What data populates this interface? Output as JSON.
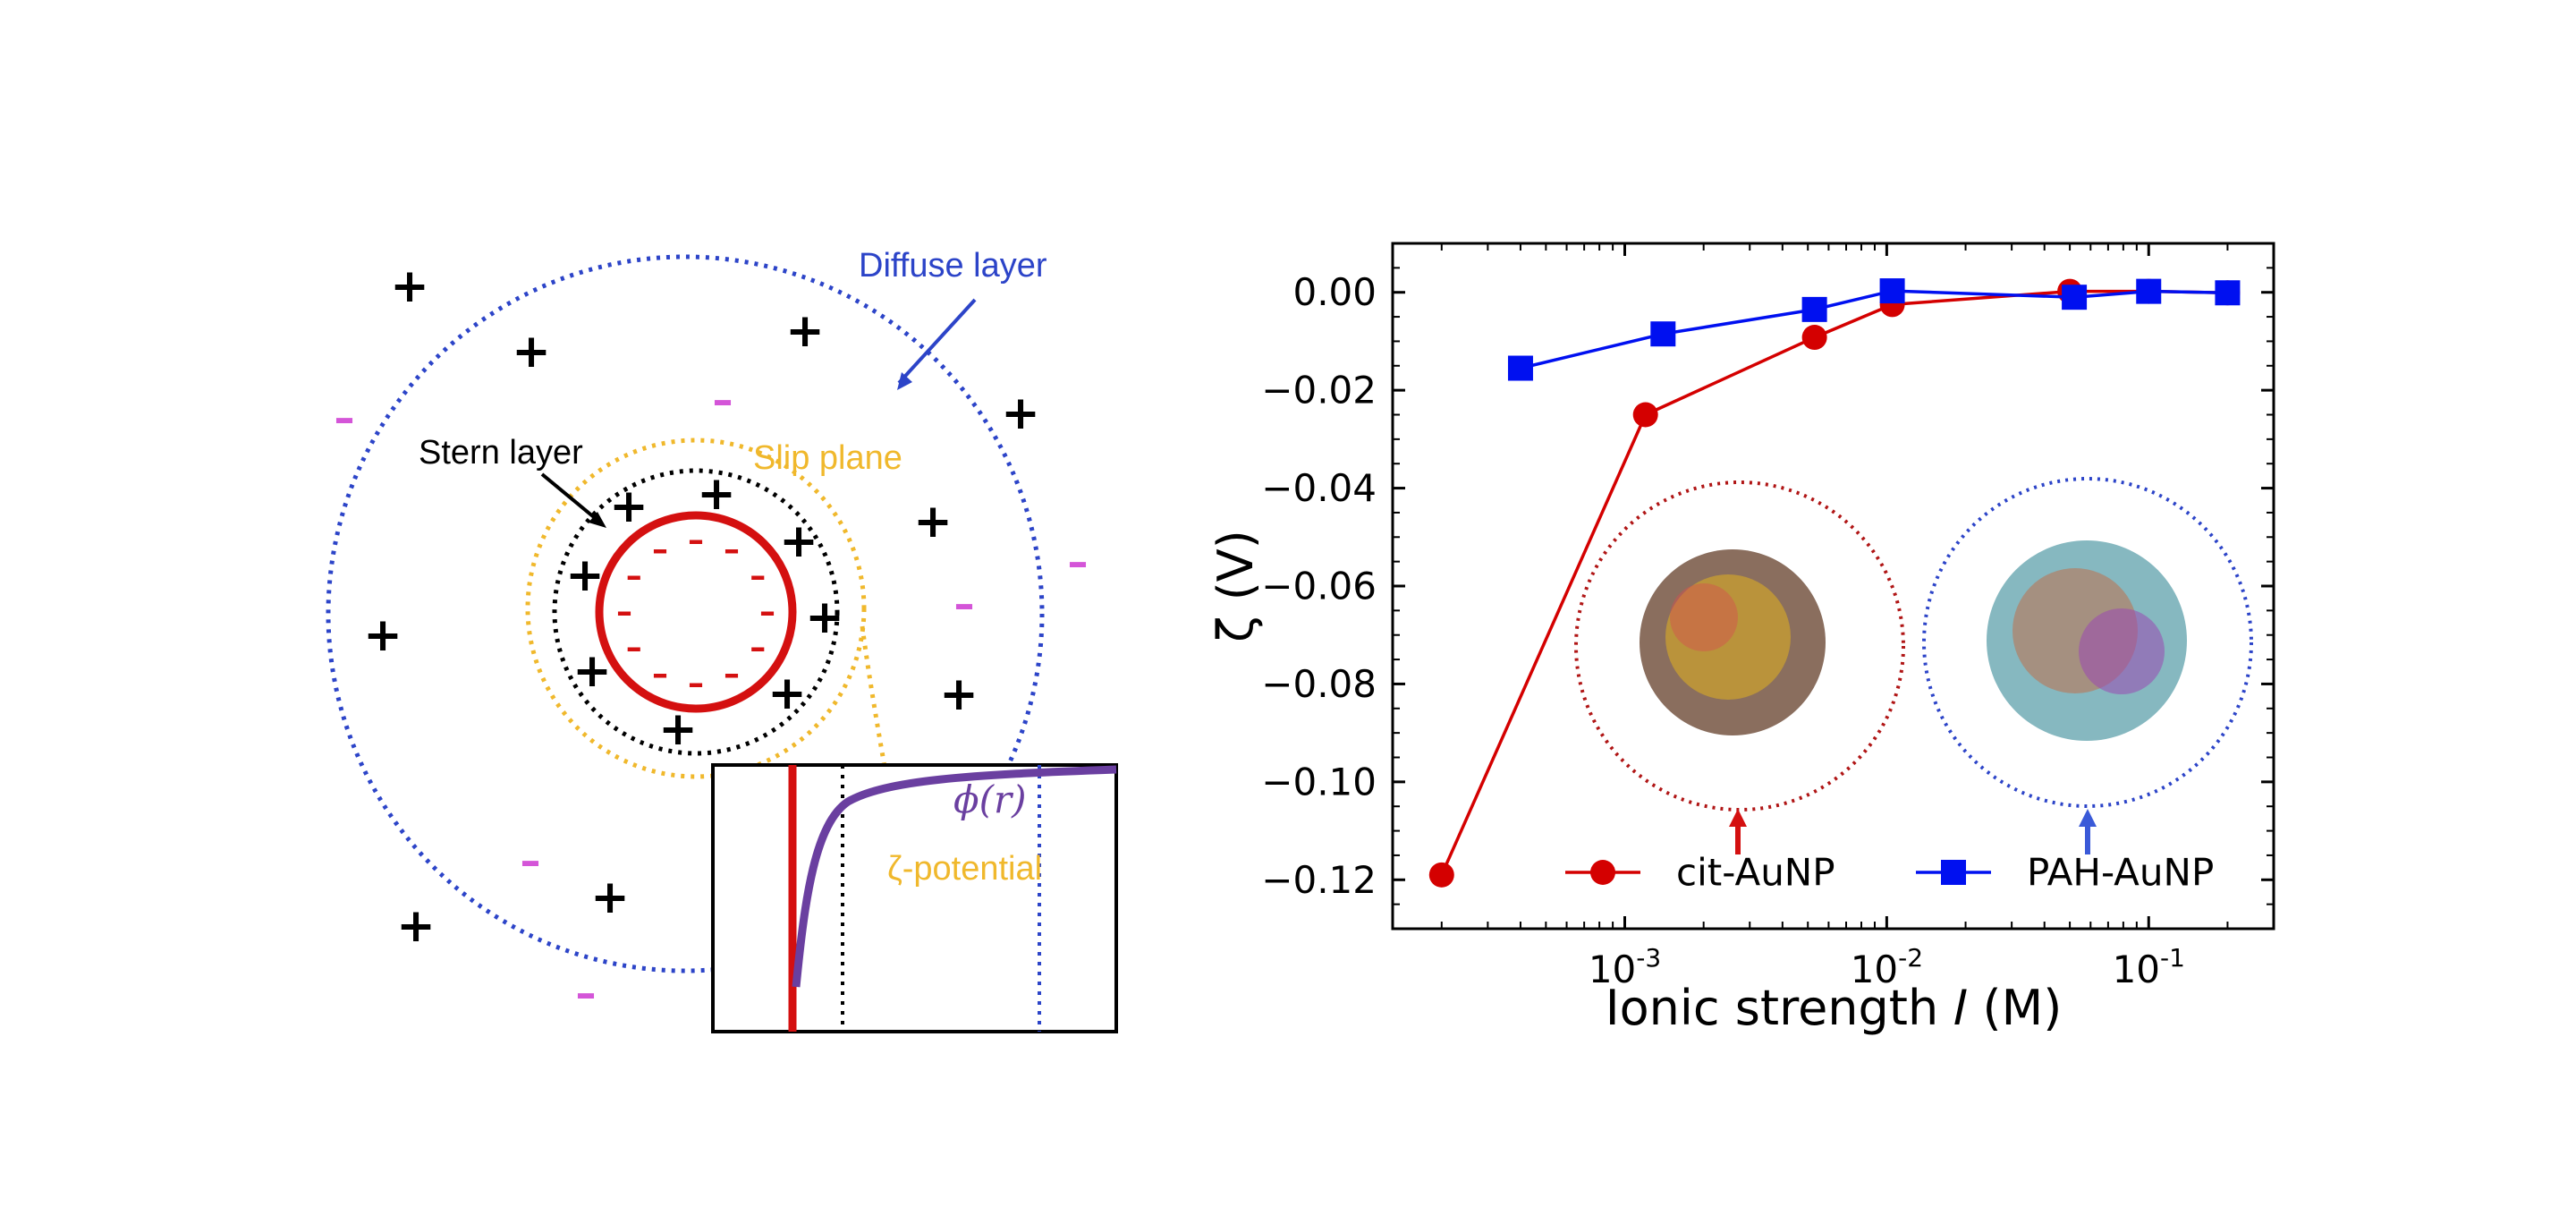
{
  "diagram": {
    "labels": {
      "diffuse_layer": "Diffuse layer",
      "stern_layer": "Stern layer",
      "slip_plane": "Slip plane",
      "potential": "ϕ(r)",
      "zeta_potential": "ζ-potential"
    },
    "colors": {
      "diffuse": "#2c44c8",
      "slip": "#f0b82c",
      "stern": "#000000",
      "particle": "#d41010",
      "anion": "#d455d8",
      "potential_curve": "#6a3fa0"
    },
    "signs": {
      "cation": "+",
      "anion": "–",
      "surface": "–"
    }
  },
  "chart_data": {
    "type": "line",
    "xscale": "log",
    "xlim": [
      0.00013,
      0.3
    ],
    "ylim": [
      -0.13,
      0.01
    ],
    "xlabel": "Ionic strength 𝐼 (M)",
    "ylabel": "ζ (V)",
    "yticks": [
      0.0,
      -0.02,
      -0.04,
      -0.06,
      -0.08,
      -0.1,
      -0.12
    ],
    "ytick_labels": [
      "0.00",
      "−0.02",
      "−0.04",
      "−0.06",
      "−0.08",
      "−0.10",
      "−0.12"
    ],
    "xticks": [
      0.001,
      0.01,
      0.1
    ],
    "xtick_labels": [
      {
        "base": "10",
        "exp": "-3"
      },
      {
        "base": "10",
        "exp": "-2"
      },
      {
        "base": "10",
        "exp": "-1"
      }
    ],
    "legend_position": "bottom-center",
    "series": [
      {
        "name": "cit-AuNP",
        "color": "#d40000",
        "marker": "circle",
        "x": [
          0.0002,
          0.0012,
          0.0053,
          0.0105,
          0.05,
          0.1,
          0.2
        ],
        "y": [
          -0.119,
          -0.025,
          -0.0092,
          -0.0025,
          0.0002,
          0.0002,
          -0.0001
        ]
      },
      {
        "name": "PAH-AuNP",
        "color": "#0010f0",
        "marker": "square",
        "x": [
          0.0004,
          0.0014,
          0.0053,
          0.0105,
          0.052,
          0.1,
          0.2
        ],
        "y": [
          -0.0155,
          -0.0085,
          -0.0035,
          0.0003,
          -0.001,
          0.0002,
          -0.0001
        ]
      }
    ]
  }
}
